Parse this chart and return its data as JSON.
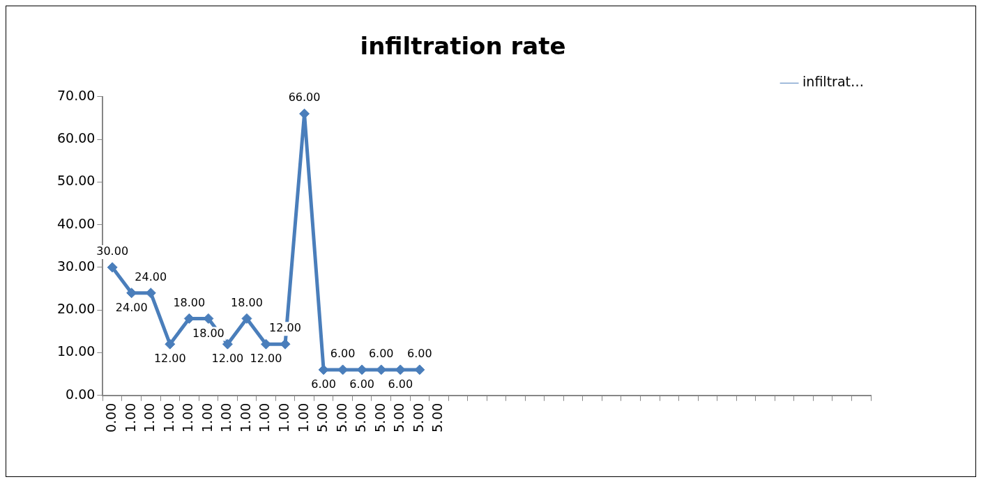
{
  "chart_data": {
    "type": "line",
    "title": "infiltration rate",
    "categories": [
      "0.00",
      "1.00",
      "1.00",
      "1.00",
      "1.00",
      "1.00",
      "1.00",
      "1.00",
      "1.00",
      "1.00",
      "1.00",
      "5.00",
      "5.00",
      "5.00",
      "5.00",
      "5.00",
      "5.00",
      "5.00",
      null,
      null,
      null,
      null,
      null,
      null,
      null,
      null,
      null,
      null,
      null,
      null,
      null,
      null,
      null,
      null,
      null,
      null,
      null,
      null,
      null,
      null
    ],
    "series": [
      {
        "name": "infiltrat…",
        "color": "#4a7ebb",
        "values": [
          30,
          24,
          24,
          12,
          18,
          18,
          12,
          18,
          12,
          12,
          66,
          6,
          6,
          6,
          6,
          6,
          6,
          null,
          null,
          null,
          null,
          null,
          null,
          null,
          null,
          null,
          null,
          null,
          null,
          null,
          null,
          null,
          null,
          null,
          null,
          null,
          null,
          null,
          null,
          null
        ],
        "value_labels": [
          "30.00",
          "24.00",
          "24.00",
          "12.00",
          "18.00",
          "18.00",
          "12.00",
          "18.00",
          "12.00",
          "12.00",
          "66.00",
          "6.00",
          "6.00",
          "6.00",
          "6.00",
          "6.00",
          "6.00",
          null,
          null,
          null,
          null,
          null,
          null,
          null,
          null,
          null,
          null,
          null,
          null,
          null,
          null,
          null,
          null,
          null,
          null,
          null,
          null,
          null,
          null,
          null
        ]
      }
    ],
    "ylim": [
      0,
      70
    ],
    "yticks": [
      {
        "value": 0,
        "label": "0.00"
      },
      {
        "value": 10,
        "label": "10.00"
      },
      {
        "value": 20,
        "label": "20.00"
      },
      {
        "value": 30,
        "label": "30.00"
      },
      {
        "value": 40,
        "label": "40.00"
      },
      {
        "value": 50,
        "label": "50.00"
      },
      {
        "value": 60,
        "label": "60.00"
      },
      {
        "value": 70,
        "label": "70.00"
      }
    ],
    "grid": false,
    "legend": "top right",
    "marker": "diamond",
    "line_style": "solid"
  }
}
